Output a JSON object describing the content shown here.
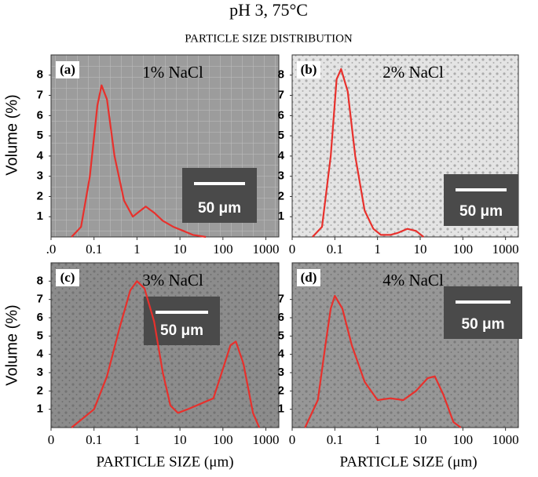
{
  "title": "pH 3, 75°C",
  "subtitle": "PARTICLE SIZE DISTRIBUTION",
  "ylabel": "Volume (%)",
  "xlabel": "PARTICLE SIZE (μm)",
  "chart_data": [
    {
      "type": "line",
      "panel_label": "(a)",
      "title": "1% NaCl",
      "scale_bar": "50 μm",
      "color": "#e8302c",
      "log_x": true,
      "x": [
        0.03,
        0.05,
        0.08,
        0.12,
        0.15,
        0.2,
        0.3,
        0.5,
        0.8,
        1.2,
        1.6,
        2.5,
        4,
        7,
        12,
        20,
        40
      ],
      "values": [
        0,
        0.5,
        3,
        6.5,
        7.5,
        6.8,
        4,
        1.8,
        1,
        1.3,
        1.5,
        1.2,
        0.8,
        0.5,
        0.3,
        0.1,
        0
      ],
      "xlim": [
        0.01,
        2000
      ],
      "ylim": [
        0,
        9
      ],
      "xticks": [
        {
          "value": 0.01,
          "label": ".0"
        },
        0.1,
        1,
        10,
        100,
        1000
      ],
      "yticks": [
        1,
        2,
        3,
        4,
        5,
        6,
        7,
        8
      ]
    },
    {
      "type": "line",
      "panel_label": "(b)",
      "title": "2% NaCl",
      "scale_bar": "50 μm",
      "color": "#e8302c",
      "log_x": true,
      "x": [
        0.03,
        0.05,
        0.08,
        0.11,
        0.14,
        0.2,
        0.3,
        0.5,
        0.8,
        1.2,
        2,
        3,
        5,
        8,
        12
      ],
      "values": [
        0,
        0.5,
        4,
        7.8,
        8.3,
        7.2,
        4,
        1.3,
        0.4,
        0.1,
        0.1,
        0.2,
        0.4,
        0.3,
        0
      ],
      "xlim": [
        0.01,
        2000
      ],
      "ylim": [
        0,
        9
      ],
      "xticks": [
        {
          "value": 0.01,
          "label": "0"
        },
        0.1,
        1,
        10,
        100,
        1000
      ],
      "yticks": [
        1,
        2,
        3,
        4,
        5,
        6,
        7,
        8
      ]
    },
    {
      "type": "line",
      "panel_label": "(c)",
      "title": "3% NaCl",
      "scale_bar": "50 μm",
      "color": "#e8302c",
      "log_x": true,
      "x": [
        0.03,
        0.1,
        0.2,
        0.4,
        0.7,
        1,
        1.5,
        2.5,
        4,
        6,
        9,
        15,
        30,
        60,
        100,
        150,
        200,
        300,
        500,
        700
      ],
      "values": [
        0,
        1,
        2.8,
        5.5,
        7.5,
        8,
        7.6,
        5.8,
        3,
        1.2,
        0.8,
        1,
        1.3,
        1.6,
        3.2,
        4.5,
        4.7,
        3.5,
        0.8,
        0
      ],
      "xlim": [
        0.01,
        2000
      ],
      "ylim": [
        0,
        9
      ],
      "xticks": [
        {
          "value": 0.01,
          "label": "0"
        },
        0.1,
        1,
        10,
        100,
        1000
      ],
      "yticks": [
        1,
        2,
        3,
        4,
        5,
        6,
        7,
        8
      ]
    },
    {
      "type": "line",
      "panel_label": "(d)",
      "title": "4% NaCl",
      "scale_bar": "50 μm",
      "color": "#e8302c",
      "log_x": true,
      "x": [
        0.02,
        0.04,
        0.06,
        0.08,
        0.1,
        0.15,
        0.25,
        0.5,
        1,
        2,
        4,
        8,
        15,
        22,
        35,
        60,
        90
      ],
      "values": [
        0,
        1.5,
        4.5,
        6.5,
        7.2,
        6.5,
        4.5,
        2.5,
        1.5,
        1.6,
        1.5,
        2,
        2.7,
        2.8,
        1.8,
        0.3,
        0
      ],
      "xlim": [
        0.01,
        2000
      ],
      "ylim": [
        0,
        9
      ],
      "xticks": [
        {
          "value": 0.01,
          "label": "0"
        },
        0.1,
        1,
        10,
        100,
        1000
      ],
      "yticks": [
        1,
        2,
        3,
        4,
        5,
        6,
        7
      ]
    }
  ]
}
